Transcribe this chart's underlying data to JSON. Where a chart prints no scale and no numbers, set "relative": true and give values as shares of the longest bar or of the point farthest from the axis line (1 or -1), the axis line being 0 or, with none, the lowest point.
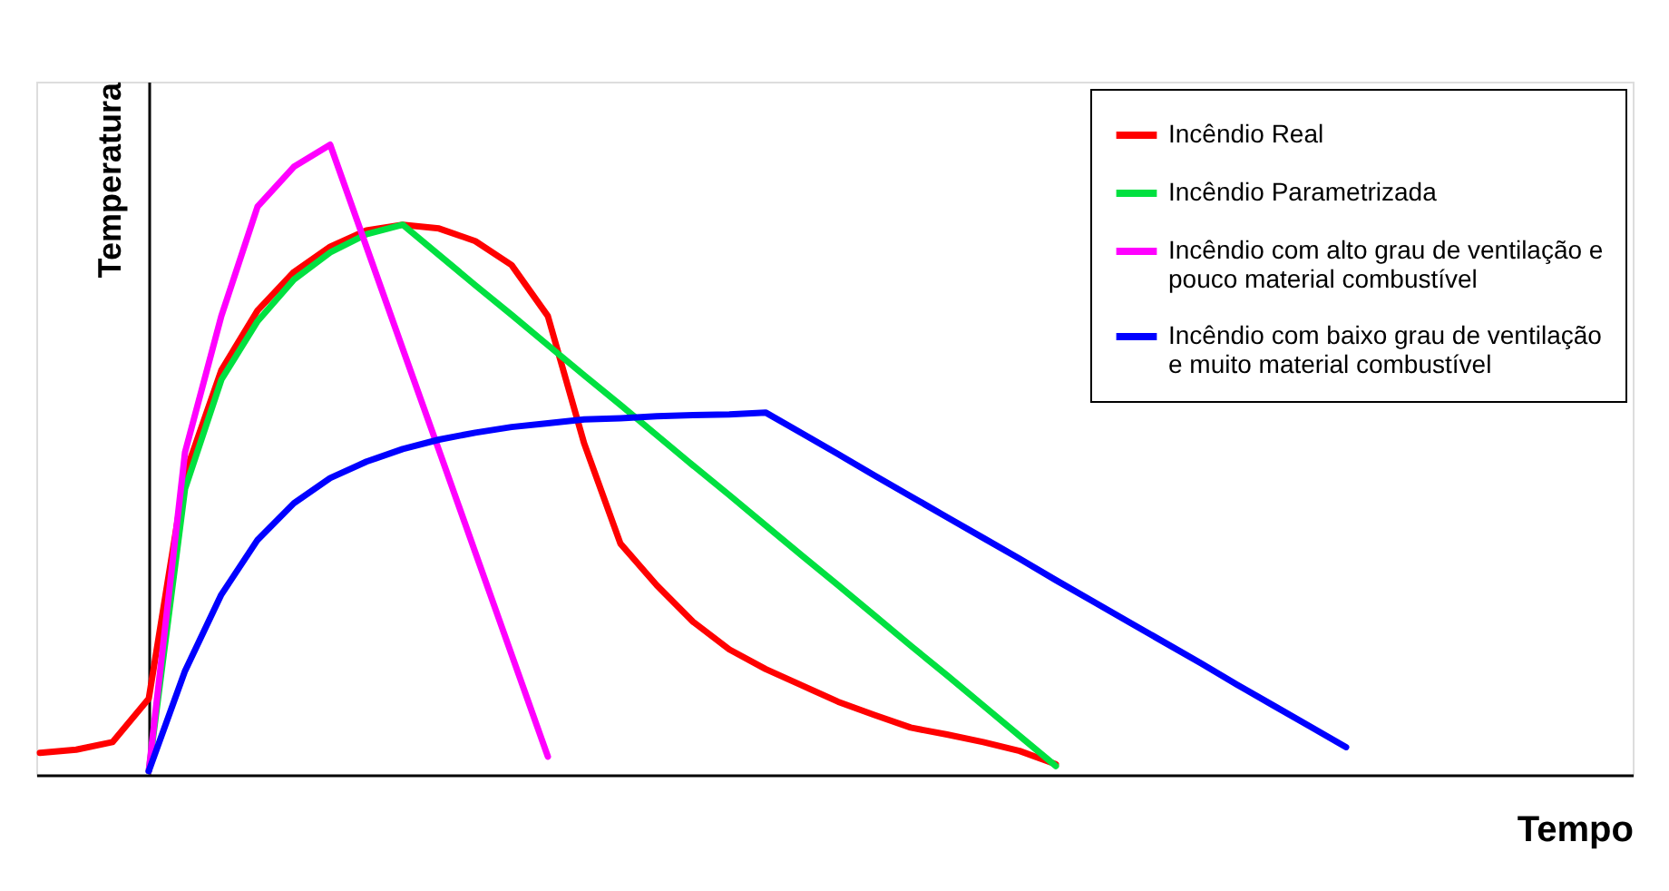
{
  "chart_data": {
    "type": "line",
    "relative": true,
    "xlabel": "Tempo",
    "ylabel": "Temperatura",
    "legend": "top right",
    "line_style": "solid",
    "categories": [
      null,
      null,
      null,
      null,
      null,
      null,
      null,
      null,
      null,
      null,
      null,
      null,
      null,
      null,
      null,
      null,
      null,
      null,
      null,
      null,
      null,
      null,
      null,
      null,
      null,
      null,
      null,
      null,
      null,
      null,
      null,
      null,
      null,
      null,
      null,
      null,
      null
    ],
    "series": [
      {
        "name": "Incêndio Real",
        "color": "#ff0000",
        "values": [
          0.035,
          0.04,
          0.052,
          0.121,
          0.477,
          0.642,
          0.737,
          0.798,
          0.838,
          0.864,
          0.873,
          0.867,
          0.847,
          0.809,
          0.728,
          0.526,
          0.367,
          0.301,
          0.243,
          0.199,
          0.168,
          0.142,
          0.116,
          0.095,
          0.075,
          0.064,
          0.052,
          0.038,
          0.017,
          null,
          null,
          null,
          null,
          null,
          null,
          null,
          null
        ]
      },
      {
        "name": "Incêndio Parametrizada",
        "color": "#00e040",
        "values": [
          null,
          null,
          null,
          0.006,
          0.454,
          0.627,
          0.72,
          0.786,
          0.829,
          0.858,
          0.873,
          0.825,
          0.777,
          0.73,
          0.682,
          0.634,
          0.587,
          0.539,
          0.491,
          0.444,
          0.396,
          0.348,
          0.301,
          0.253,
          0.205,
          0.158,
          0.11,
          0.062,
          0.014,
          null,
          null,
          null,
          null,
          null,
          null,
          null,
          null
        ]
      },
      {
        "name": "Incêndio com alto grau de ventilação e pouco material combustível",
        "color": "#ff00ff",
        "values": [
          null,
          null,
          null,
          0.006,
          0.512,
          0.728,
          0.902,
          0.965,
          1.0,
          0.838,
          0.676,
          0.515,
          0.353,
          0.191,
          0.029,
          null,
          null,
          null,
          null,
          null,
          null,
          null,
          null,
          null,
          null,
          null,
          null,
          null,
          null,
          null,
          null,
          null,
          null,
          null,
          null,
          null,
          null
        ]
      },
      {
        "name": "Incêndio com baixo grau de ventilação e muito material combustível",
        "color": "#0000ff",
        "values": [
          null,
          null,
          null,
          0.006,
          0.165,
          0.286,
          0.373,
          0.431,
          0.471,
          0.497,
          0.517,
          0.532,
          0.543,
          0.552,
          0.558,
          0.564,
          0.566,
          0.569,
          0.571,
          0.572,
          0.575,
          0.542,
          0.509,
          0.475,
          0.442,
          0.409,
          0.376,
          0.343,
          0.309,
          0.276,
          0.243,
          0.21,
          0.177,
          0.143,
          0.11,
          0.077,
          0.044
        ]
      }
    ]
  }
}
